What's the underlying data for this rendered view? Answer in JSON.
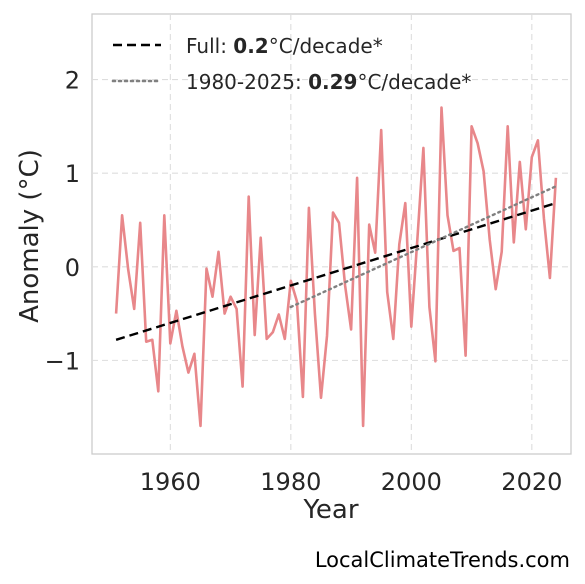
{
  "chart_data": {
    "type": "line",
    "xlabel": "Year",
    "ylabel": "Anomaly (°C)",
    "xlim": [
      1947,
      2026.5
    ],
    "ylim": [
      -2.0,
      2.7
    ],
    "x_ticks": [
      1960,
      1980,
      2000,
      2020
    ],
    "x_tick_labels": [
      "1960",
      "1980",
      "2000",
      "2020"
    ],
    "y_ticks": [
      -1,
      0,
      1,
      2
    ],
    "y_tick_labels": [
      "−1",
      "0",
      "1",
      "2"
    ],
    "grid": true,
    "legend_position": "top-left",
    "series": [
      {
        "style": "solid",
        "color": "#e8878a",
        "x": [
          1951,
          1952,
          1953,
          1954,
          1955,
          1956,
          1957,
          1958,
          1959,
          1960,
          1961,
          1962,
          1963,
          1964,
          1965,
          1966,
          1967,
          1968,
          1969,
          1970,
          1971,
          1972,
          1973,
          1974,
          1975,
          1976,
          1977,
          1978,
          1979,
          1980,
          1981,
          1982,
          1983,
          1984,
          1985,
          1986,
          1987,
          1988,
          1989,
          1990,
          1991,
          1992,
          1993,
          1994,
          1995,
          1996,
          1997,
          1998,
          1999,
          2000,
          2001,
          2002,
          2003,
          2004,
          2005,
          2006,
          2007,
          2008,
          2009,
          2010,
          2011,
          2012,
          2013,
          2014,
          2015,
          2016,
          2017,
          2018,
          2019,
          2020,
          2021,
          2022,
          2023,
          2024
        ],
        "y": [
          -0.5,
          0.55,
          -0.03,
          -0.45,
          0.47,
          -0.8,
          -0.78,
          -1.33,
          0.55,
          -0.82,
          -0.47,
          -0.85,
          -1.13,
          -0.93,
          -1.7,
          -0.02,
          -0.32,
          0.16,
          -0.5,
          -0.32,
          -0.45,
          -1.28,
          0.75,
          -0.73,
          0.31,
          -0.77,
          -0.7,
          -0.51,
          -0.77,
          -0.15,
          -0.37,
          -1.39,
          0.63,
          -0.5,
          -1.4,
          -0.74,
          0.58,
          0.47,
          -0.2,
          -0.67,
          0.95,
          -1.7,
          0.45,
          0.15,
          1.46,
          -0.27,
          -0.77,
          0.24,
          0.68,
          -0.64,
          0.3,
          1.27,
          -0.43,
          -1.01,
          1.7,
          0.55,
          0.17,
          0.2,
          -0.95,
          1.5,
          1.32,
          1.02,
          0.29,
          -0.24,
          0.16,
          1.5,
          0.26,
          1.12,
          0.4,
          1.17,
          1.35,
          0.52,
          -0.12,
          0.95
        ]
      },
      {
        "name": "Full",
        "style": "dashed",
        "color": "#000000",
        "x": [
          1951,
          2024
        ],
        "y": [
          -0.78,
          0.68
        ]
      },
      {
        "name": "1980-2025",
        "style": "dotted",
        "color": "#808080",
        "x": [
          1980,
          2024
        ],
        "y": [
          -0.43,
          0.86
        ]
      }
    ],
    "legend": [
      {
        "prefix": "Full: ",
        "value": "0.2",
        "suffix": "°C/decade*",
        "style": "dashed",
        "color": "#000000"
      },
      {
        "prefix": "1980-2025: ",
        "value": "0.29",
        "suffix": "°C/decade*",
        "style": "dotted",
        "color": "#808080"
      }
    ]
  },
  "source": "LocalClimateTrends.com"
}
